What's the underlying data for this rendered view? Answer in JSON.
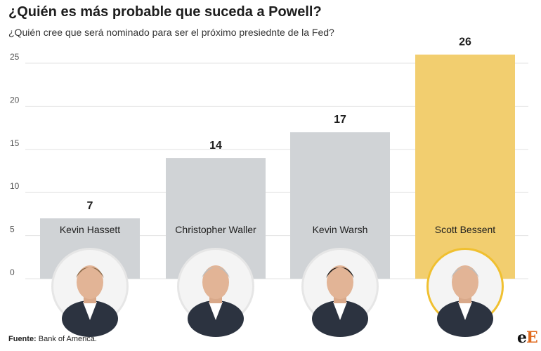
{
  "header": {
    "title": "¿Quién es más probable que suceda a Powell?",
    "subtitle": "¿Quién cree que será nominado para ser el próximo presiednte de la Fed?"
  },
  "footer": {
    "source_label": "Fuente:",
    "source_text": "Bank of America.",
    "logo_text": "eE"
  },
  "colors": {
    "bar": "#d0d3d6",
    "highlight": "#f2ce6f",
    "highlight_ring": "#f0c030",
    "grid": "#e3e3e3",
    "tick": "#555555"
  },
  "chart_data": {
    "type": "bar",
    "title": "¿Quién es más probable que suceda a Powell?",
    "subtitle": "¿Quién cree que será nominado para ser el próximo presiednte de la Fed?",
    "xlabel": "",
    "ylabel": "",
    "ylim": [
      0,
      26
    ],
    "yticks": [
      0,
      5,
      10,
      15,
      20,
      25
    ],
    "grid": true,
    "categories": [
      "Kevin Hassett",
      "Christopher Waller",
      "Kevin Warsh",
      "Scott Bessent"
    ],
    "values": [
      7,
      14,
      17,
      26
    ],
    "data_labels": [
      "7",
      "14",
      "17",
      "26"
    ],
    "highlighted": "Scott Bessent",
    "portraits": [
      "portrait-icon",
      "portrait-icon",
      "portrait-icon",
      "portrait-icon"
    ]
  }
}
